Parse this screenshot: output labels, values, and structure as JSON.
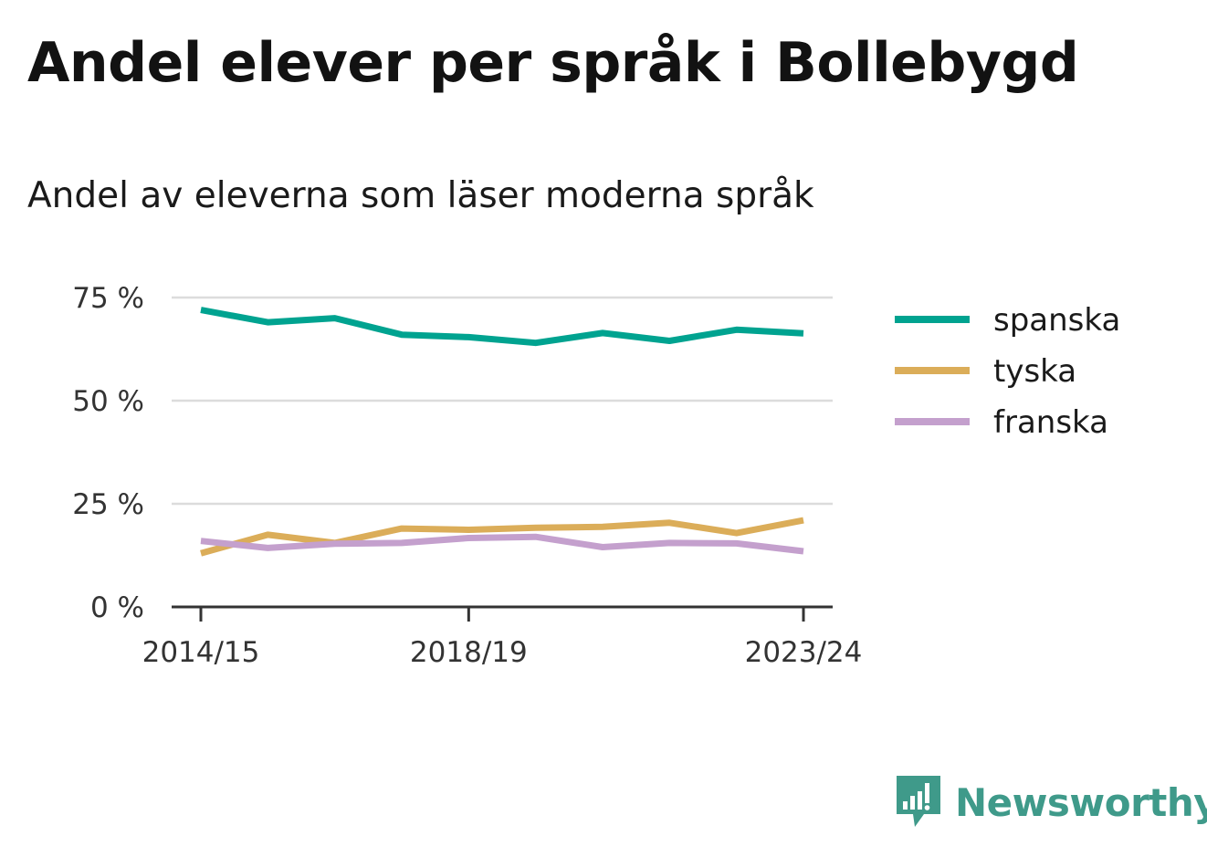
{
  "header": {
    "title": "Andel elever per språk i Bollebygd",
    "subtitle": "Andel av eleverna som läser moderna språk"
  },
  "brand": {
    "name": "Newsworthy",
    "color": "#3f9a8a",
    "icon": "bar-chart-speech-bubble-icon"
  },
  "chart_data": {
    "type": "line",
    "title": "Andel elever per språk i Bollebygd",
    "subtitle": "Andel av eleverna som läser moderna språk",
    "xlabel": "",
    "ylabel": "",
    "x": [
      "2014/15",
      "2015/16",
      "2016/17",
      "2017/18",
      "2018/19",
      "2019/20",
      "2020/21",
      "2021/22",
      "2022/23",
      "2023/24"
    ],
    "x_tick_labels": [
      "2014/15",
      "2018/19",
      "2023/24"
    ],
    "y_ticks": [
      0,
      25,
      50,
      75
    ],
    "y_tick_labels": [
      "0 %",
      "25 %",
      "50 %",
      "75 %"
    ],
    "ylim": [
      0,
      75
    ],
    "grid": true,
    "legend_position": "right",
    "series": [
      {
        "name": "spanska",
        "color": "#00a390",
        "values": [
          72,
          69,
          70,
          66,
          65.4,
          64,
          66.4,
          64.5,
          67.2,
          66.3
        ]
      },
      {
        "name": "tyska",
        "color": "#dbad59",
        "values": [
          13,
          17.5,
          15.5,
          19,
          18.7,
          19.2,
          19.4,
          20.4,
          17.9,
          21
        ]
      },
      {
        "name": "franska",
        "color": "#c4a0cd",
        "values": [
          16,
          14.3,
          15.3,
          15.5,
          16.7,
          17,
          14.5,
          15.5,
          15.4,
          13.5
        ]
      }
    ]
  }
}
